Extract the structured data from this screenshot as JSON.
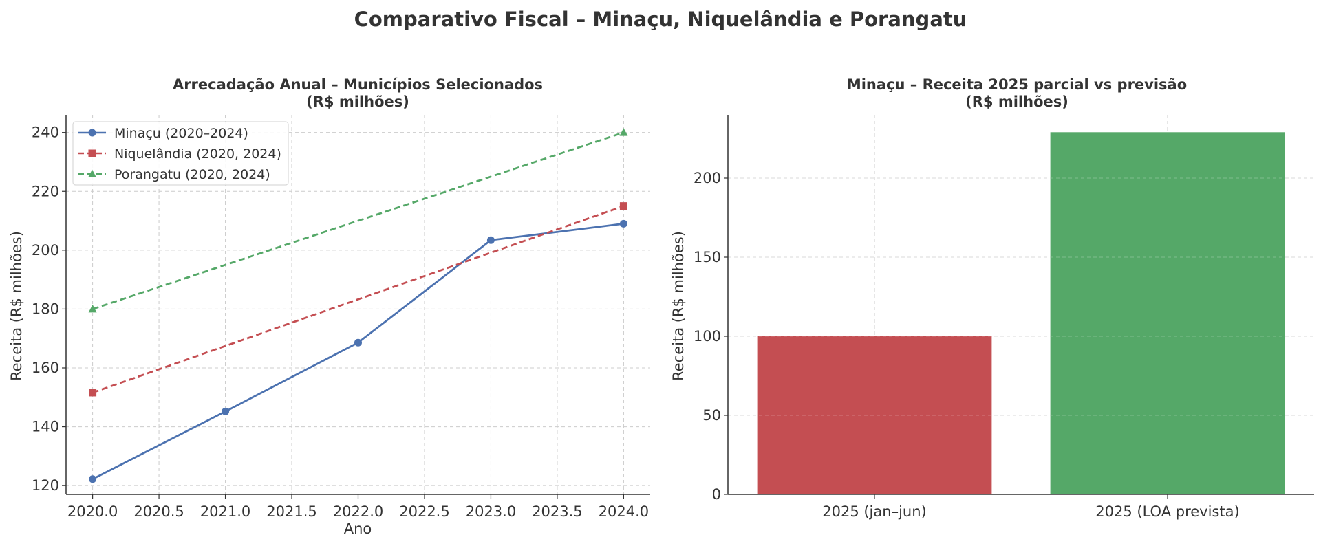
{
  "figure": {
    "title": "Comparativo Fiscal – Minaçu, Niquelândia e Porangatu"
  },
  "chart_data": [
    {
      "type": "line",
      "title_line1": "Arrecadação Anual – Municípios Selecionados",
      "title_line2": "(R$ milhões)",
      "xlabel": "Ano",
      "ylabel": "Receita (R$ milhões)",
      "xlim": [
        2019.8,
        2024.2
      ],
      "ylim": [
        117,
        246
      ],
      "xticks": [
        2020.0,
        2020.5,
        2021.0,
        2021.5,
        2022.0,
        2022.5,
        2023.0,
        2023.5,
        2024.0
      ],
      "xtick_labels": [
        "2020.0",
        "2020.5",
        "2021.0",
        "2021.5",
        "2022.0",
        "2022.5",
        "2023.0",
        "2023.5",
        "2024.0"
      ],
      "yticks": [
        120,
        140,
        160,
        180,
        200,
        220,
        240
      ],
      "ytick_labels": [
        "120",
        "140",
        "160",
        "180",
        "200",
        "220",
        "240"
      ],
      "grid": true,
      "legend_position": "top-left",
      "series": [
        {
          "name": "Minaçu (2020–2024)",
          "color": "#4c72b0",
          "style": "solid",
          "marker": "circle",
          "points": [
            [
              2020,
              122.2
            ],
            [
              2021,
              145.2
            ],
            [
              2022,
              168.6
            ],
            [
              2023,
              203.4
            ],
            [
              2024,
              209.0
            ]
          ]
        },
        {
          "name": "Niquelândia (2020, 2024)",
          "color": "#c44e52",
          "style": "dashed",
          "marker": "square",
          "points": [
            [
              2020,
              151.6
            ],
            [
              2024,
              215.0
            ]
          ]
        },
        {
          "name": "Porangatu (2020, 2024)",
          "color": "#55a868",
          "style": "dashed",
          "marker": "triangle",
          "points": [
            [
              2020,
              180.0
            ],
            [
              2024,
              240.0
            ]
          ]
        }
      ]
    },
    {
      "type": "bar",
      "title_line1": "Minaçu – Receita 2025 parcial vs previsão",
      "title_line2": "(R$ milhões)",
      "xlabel": "",
      "ylabel": "Receita (R$ milhões)",
      "ylim": [
        0,
        240
      ],
      "yticks": [
        0,
        50,
        100,
        150,
        200
      ],
      "ytick_labels": [
        "0",
        "50",
        "100",
        "150",
        "200"
      ],
      "grid": true,
      "categories": [
        "2025 (jan–jun)",
        "2025 (LOA prevista)"
      ],
      "values": [
        100,
        229
      ],
      "colors": [
        "#c44e52",
        "#55a868"
      ]
    }
  ]
}
